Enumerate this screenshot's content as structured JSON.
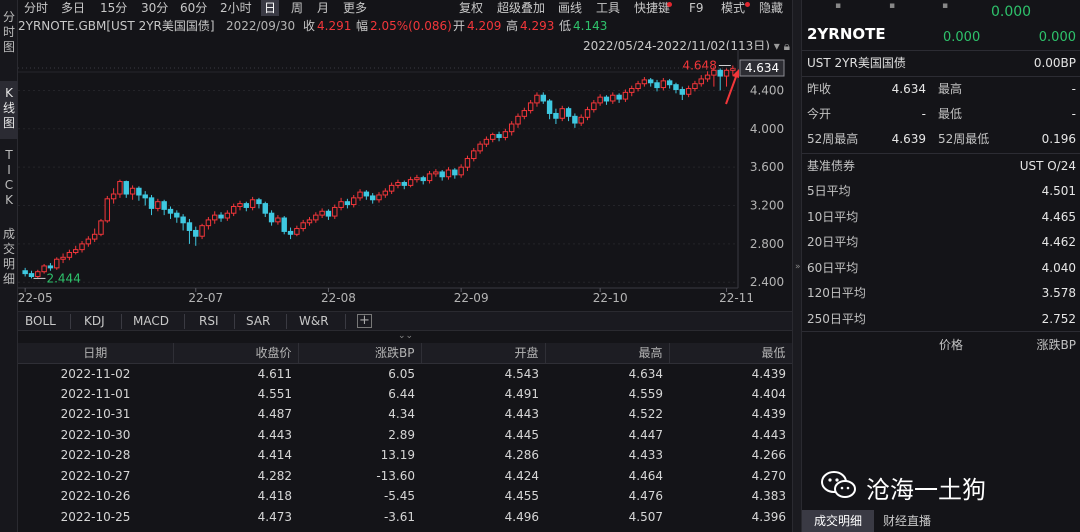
{
  "sidebar": {
    "tabs": [
      "分\n时\n图",
      "K\n线\n图",
      "T\nI\nC\nK",
      "成\n交\n明\n细"
    ],
    "active_index": 1
  },
  "toolbar": {
    "periods": [
      "分时",
      "多日",
      "15分",
      "30分",
      "60分",
      "2小时",
      "日",
      "周",
      "月",
      "更多"
    ],
    "active_period": "日",
    "tools": [
      "复权",
      "超级叠加",
      "画线",
      "工具",
      "快捷键",
      "F9",
      "模式",
      "隐藏"
    ]
  },
  "info": {
    "symbol": "2YRNOTE.GBM[UST 2YR美国国债]",
    "date": "2022/09/30",
    "close_label": "收",
    "close": "4.291",
    "change_label": "幅",
    "change": "2.05%(0.086)",
    "open_label": "开",
    "open": "4.209",
    "high_label": "高",
    "high": "4.293",
    "low_label": "低",
    "low": "4.143"
  },
  "range": {
    "text": "2022/05/24-2022/11/02(113日)",
    "icon": "chevron-down-icon",
    "lock_icon": "lock-icon"
  },
  "chart_data": {
    "type": "candlestick",
    "y_ticks": [
      "4.400",
      "4.000",
      "3.600",
      "3.200",
      "2.800",
      "2.400"
    ],
    "ylim": [
      2.34,
      4.78
    ],
    "x_ticks": [
      {
        "label": "22-05",
        "index": 0
      },
      {
        "label": "22-07",
        "index": 27
      },
      {
        "label": "22-08",
        "index": 48
      },
      {
        "label": "22-09",
        "index": 69
      },
      {
        "label": "22-10",
        "index": 91
      },
      {
        "label": "22-11",
        "index": 111
      }
    ],
    "max_label": "4.648",
    "min_label": "2.444",
    "last_price": "4.634",
    "candles": [
      [
        2.52,
        2.49,
        2.55,
        2.46
      ],
      [
        2.49,
        2.46,
        2.52,
        2.44
      ],
      [
        2.46,
        2.51,
        2.53,
        2.44
      ],
      [
        2.51,
        2.57,
        2.59,
        2.49
      ],
      [
        2.57,
        2.55,
        2.6,
        2.52
      ],
      [
        2.55,
        2.64,
        2.66,
        2.53
      ],
      [
        2.64,
        2.66,
        2.7,
        2.6
      ],
      [
        2.66,
        2.71,
        2.74,
        2.63
      ],
      [
        2.71,
        2.74,
        2.78,
        2.69
      ],
      [
        2.74,
        2.8,
        2.83,
        2.71
      ],
      [
        2.8,
        2.85,
        2.88,
        2.77
      ],
      [
        2.85,
        2.9,
        2.96,
        2.82
      ],
      [
        2.9,
        3.04,
        3.06,
        2.88
      ],
      [
        3.04,
        3.27,
        3.3,
        3.02
      ],
      [
        3.27,
        3.32,
        3.38,
        3.22
      ],
      [
        3.32,
        3.45,
        3.47,
        3.28
      ],
      [
        3.45,
        3.32,
        3.46,
        3.28
      ],
      [
        3.32,
        3.38,
        3.41,
        3.26
      ],
      [
        3.38,
        3.31,
        3.4,
        3.25
      ],
      [
        3.31,
        3.28,
        3.35,
        3.2
      ],
      [
        3.28,
        3.17,
        3.31,
        3.1
      ],
      [
        3.17,
        3.24,
        3.27,
        3.14
      ],
      [
        3.24,
        3.16,
        3.26,
        3.1
      ],
      [
        3.16,
        3.12,
        3.19,
        3.06
      ],
      [
        3.12,
        3.08,
        3.15,
        3.02
      ],
      [
        3.08,
        3.02,
        3.11,
        2.94
      ],
      [
        3.02,
        2.94,
        3.06,
        2.8
      ],
      [
        2.94,
        2.88,
        2.98,
        2.78
      ],
      [
        2.88,
        2.99,
        3.01,
        2.85
      ],
      [
        2.99,
        3.05,
        3.08,
        2.95
      ],
      [
        3.05,
        3.1,
        3.14,
        3.01
      ],
      [
        3.1,
        3.07,
        3.13,
        3.03
      ],
      [
        3.07,
        3.12,
        3.15,
        3.04
      ],
      [
        3.12,
        3.19,
        3.22,
        3.09
      ],
      [
        3.19,
        3.22,
        3.25,
        3.15
      ],
      [
        3.22,
        3.18,
        3.24,
        3.14
      ],
      [
        3.18,
        3.26,
        3.29,
        3.15
      ],
      [
        3.26,
        3.22,
        3.28,
        3.17
      ],
      [
        3.22,
        3.12,
        3.24,
        3.08
      ],
      [
        3.12,
        3.03,
        3.15,
        2.99
      ],
      [
        3.03,
        3.07,
        3.1,
        3.0
      ],
      [
        3.07,
        2.93,
        3.09,
        2.9
      ],
      [
        2.93,
        2.9,
        2.97,
        2.85
      ],
      [
        2.9,
        2.96,
        2.99,
        2.88
      ],
      [
        2.96,
        3.02,
        3.05,
        2.93
      ],
      [
        3.02,
        3.05,
        3.08,
        2.99
      ],
      [
        3.05,
        3.1,
        3.13,
        3.02
      ],
      [
        3.1,
        3.14,
        3.17,
        3.07
      ],
      [
        3.14,
        3.09,
        3.16,
        3.05
      ],
      [
        3.09,
        3.18,
        3.21,
        3.06
      ],
      [
        3.18,
        3.24,
        3.28,
        3.15
      ],
      [
        3.24,
        3.21,
        3.27,
        3.17
      ],
      [
        3.21,
        3.28,
        3.31,
        3.18
      ],
      [
        3.28,
        3.34,
        3.37,
        3.25
      ],
      [
        3.34,
        3.3,
        3.36,
        3.26
      ],
      [
        3.3,
        3.26,
        3.33,
        3.22
      ],
      [
        3.26,
        3.31,
        3.34,
        3.23
      ],
      [
        3.31,
        3.35,
        3.38,
        3.28
      ],
      [
        3.35,
        3.41,
        3.44,
        3.32
      ],
      [
        3.41,
        3.44,
        3.47,
        3.38
      ],
      [
        3.44,
        3.41,
        3.46,
        3.37
      ],
      [
        3.41,
        3.47,
        3.5,
        3.39
      ],
      [
        3.47,
        3.49,
        3.52,
        3.44
      ],
      [
        3.49,
        3.46,
        3.51,
        3.42
      ],
      [
        3.46,
        3.53,
        3.56,
        3.43
      ],
      [
        3.53,
        3.55,
        3.58,
        3.5
      ],
      [
        3.55,
        3.5,
        3.57,
        3.46
      ],
      [
        3.5,
        3.57,
        3.6,
        3.47
      ],
      [
        3.57,
        3.52,
        3.59,
        3.48
      ],
      [
        3.52,
        3.6,
        3.63,
        3.49
      ],
      [
        3.6,
        3.69,
        3.72,
        3.56
      ],
      [
        3.69,
        3.77,
        3.8,
        3.66
      ],
      [
        3.77,
        3.84,
        3.87,
        3.74
      ],
      [
        3.84,
        3.89,
        3.92,
        3.81
      ],
      [
        3.89,
        3.94,
        3.96,
        3.86
      ],
      [
        3.94,
        3.91,
        3.97,
        3.87
      ],
      [
        3.91,
        3.97,
        4.0,
        3.88
      ],
      [
        3.97,
        4.05,
        4.08,
        3.93
      ],
      [
        4.05,
        4.13,
        4.16,
        4.01
      ],
      [
        4.13,
        4.19,
        4.22,
        4.1
      ],
      [
        4.19,
        4.27,
        4.3,
        4.16
      ],
      [
        4.27,
        4.35,
        4.38,
        4.23
      ],
      [
        4.35,
        4.29,
        4.38,
        4.26
      ],
      [
        4.29,
        4.16,
        4.31,
        4.1
      ],
      [
        4.16,
        4.11,
        4.21,
        4.05
      ],
      [
        4.11,
        4.21,
        4.24,
        4.08
      ],
      [
        4.21,
        4.13,
        4.23,
        4.08
      ],
      [
        4.13,
        4.06,
        4.16,
        4.01
      ],
      [
        4.06,
        4.12,
        4.15,
        4.03
      ],
      [
        4.12,
        4.2,
        4.23,
        4.09
      ],
      [
        4.2,
        4.27,
        4.3,
        4.17
      ],
      [
        4.27,
        4.33,
        4.36,
        4.24
      ],
      [
        4.33,
        4.29,
        4.35,
        4.25
      ],
      [
        4.29,
        4.35,
        4.38,
        4.26
      ],
      [
        4.35,
        4.31,
        4.37,
        4.27
      ],
      [
        4.31,
        4.38,
        4.41,
        4.28
      ],
      [
        4.38,
        4.42,
        4.45,
        4.34
      ],
      [
        4.42,
        4.47,
        4.5,
        4.39
      ],
      [
        4.47,
        4.51,
        4.54,
        4.44
      ],
      [
        4.51,
        4.48,
        4.53,
        4.44
      ],
      [
        4.48,
        4.43,
        4.51,
        4.39
      ],
      [
        4.43,
        4.5,
        4.53,
        4.4
      ],
      [
        4.5,
        4.46,
        4.52,
        4.42
      ],
      [
        4.46,
        4.41,
        4.48,
        4.37
      ],
      [
        4.41,
        4.36,
        4.44,
        4.3
      ],
      [
        4.36,
        4.42,
        4.45,
        4.33
      ],
      [
        4.42,
        4.47,
        4.5,
        4.39
      ],
      [
        4.47,
        4.52,
        4.56,
        4.44
      ],
      [
        4.52,
        4.56,
        4.6,
        4.49
      ],
      [
        4.56,
        4.61,
        4.65,
        4.44
      ],
      [
        4.61,
        4.55,
        4.63,
        4.4
      ],
      [
        4.55,
        4.61,
        4.63,
        4.44
      ],
      [
        4.61,
        4.63,
        4.66,
        4.56
      ]
    ]
  },
  "indicators": [
    "BOLL",
    "KDJ",
    "MACD",
    "RSI",
    "SAR",
    "W&R"
  ],
  "table": {
    "columns": [
      "日期",
      "收盘价",
      "涨跌BP",
      "开盘",
      "最高",
      "最低"
    ],
    "rows": [
      [
        "2022-11-02",
        "4.611",
        "6.05",
        "4.543",
        "4.634",
        "4.439"
      ],
      [
        "2022-11-01",
        "4.551",
        "6.44",
        "4.491",
        "4.559",
        "4.404"
      ],
      [
        "2022-10-31",
        "4.487",
        "4.34",
        "4.443",
        "4.522",
        "4.439"
      ],
      [
        "2022-10-30",
        "4.443",
        "2.89",
        "4.445",
        "4.447",
        "4.443"
      ],
      [
        "2022-10-28",
        "4.414",
        "13.19",
        "4.286",
        "4.433",
        "4.266"
      ],
      [
        "2022-10-27",
        "4.282",
        "-13.60",
        "4.424",
        "4.464",
        "4.270"
      ],
      [
        "2022-10-26",
        "4.418",
        "-5.45",
        "4.455",
        "4.476",
        "4.383"
      ],
      [
        "2022-10-25",
        "4.473",
        "-3.61",
        "4.496",
        "4.507",
        "4.396"
      ]
    ]
  },
  "right": {
    "top_values": [
      "0.000",
      "0.000",
      "0.000"
    ],
    "title": "2YRNOTE",
    "subtitle": "UST 2YR美国国债",
    "subtitle_value": "0.00BP",
    "rows": [
      {
        "l1": "昨收",
        "v1": "4.634",
        "l2": "最高",
        "v2": "-"
      },
      {
        "l1": "今开",
        "v1": "-",
        "l2": "最低",
        "v2": "-"
      },
      {
        "l1": "52周最高",
        "v1": "4.639",
        "l2": "52周最低",
        "v2": "0.196"
      }
    ],
    "bench_label": "基准债券",
    "bench_value": "UST O/24",
    "averages": [
      {
        "label": "5日平均",
        "value": "4.501"
      },
      {
        "label": "10日平均",
        "value": "4.465"
      },
      {
        "label": "20日平均",
        "value": "4.462"
      },
      {
        "label": "60日平均",
        "value": "4.040"
      },
      {
        "label": "120日平均",
        "value": "3.578"
      },
      {
        "label": "250日平均",
        "value": "2.752"
      }
    ],
    "price_header": "价格",
    "change_header": "涨跌BP",
    "tabs": [
      "成交明细",
      "财经直播"
    ],
    "watermark": "沧海一土狗"
  }
}
